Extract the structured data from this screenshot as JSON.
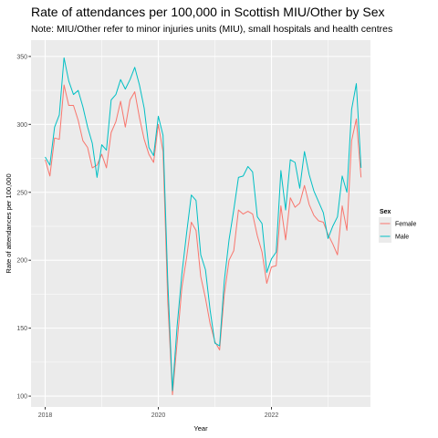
{
  "chart_data": {
    "type": "line",
    "title": "Rate of attendances per 100,000 in Scottish MIU/Other by Sex",
    "subtitle": "Note: MIU/Other refer to minor injuries units (MIU), small hospitals and health centres",
    "xlabel": "Year",
    "ylabel": "Rate of attendances per 100,000",
    "x_start": "2018-01",
    "x_ticks": [
      "2018",
      "2020",
      "2022"
    ],
    "y_ticks": [
      100,
      150,
      200,
      250,
      300,
      350
    ],
    "ylim": [
      92,
      362
    ],
    "xlim": [
      "2017-10",
      "2023-10"
    ],
    "grid": true,
    "legend": {
      "title": "Sex",
      "position": "right"
    },
    "series": [
      {
        "name": "Female",
        "color": "#F8766D",
        "values": [
          274,
          262,
          290,
          289,
          329,
          314,
          314,
          303,
          288,
          283,
          268,
          270,
          278,
          268,
          294,
          302,
          317,
          298,
          318,
          324,
          305,
          289,
          278,
          272,
          300,
          280,
          170,
          101,
          140,
          180,
          202,
          228,
          222,
          188,
          172,
          153,
          140,
          134,
          175,
          200,
          207,
          237,
          234,
          236,
          234,
          218,
          206,
          183,
          195,
          196,
          240,
          215,
          246,
          239,
          242,
          255,
          241,
          233,
          229,
          228,
          219,
          212,
          204,
          240,
          222,
          288,
          304,
          261
        ]
      },
      {
        "name": "Male",
        "color": "#00BFC4",
        "values": [
          276,
          270,
          298,
          307,
          349,
          332,
          322,
          325,
          313,
          298,
          286,
          261,
          285,
          281,
          318,
          322,
          333,
          326,
          333,
          342,
          329,
          312,
          283,
          277,
          306,
          292,
          185,
          104,
          152,
          190,
          220,
          248,
          244,
          204,
          193,
          163,
          139,
          137,
          185,
          215,
          237,
          261,
          262,
          269,
          265,
          232,
          227,
          191,
          201,
          206,
          266,
          237,
          274,
          272,
          253,
          280,
          263,
          251,
          243,
          235,
          216,
          225,
          232,
          262,
          250,
          311,
          330,
          268
        ]
      }
    ]
  }
}
